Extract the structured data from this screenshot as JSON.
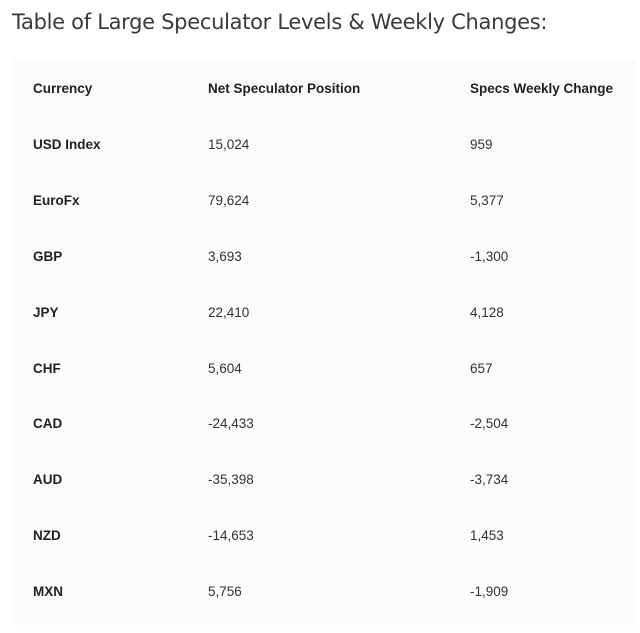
{
  "title": "Table of Large Speculator Levels & Weekly Changes:",
  "table": {
    "headers": [
      "Currency",
      "Net Speculator Position",
      "Specs Weekly Change"
    ],
    "rows": [
      [
        "USD Index",
        "15,024",
        "959"
      ],
      [
        "EuroFx",
        "79,624",
        "5,377"
      ],
      [
        "GBP",
        "3,693",
        "-1,300"
      ],
      [
        "JPY",
        "22,410",
        "4,128"
      ],
      [
        "CHF",
        "5,604",
        "657"
      ],
      [
        "CAD",
        "-24,433",
        "-2,504"
      ],
      [
        "AUD",
        "-35,398",
        "-3,734"
      ],
      [
        "NZD",
        "-14,653",
        "1,453"
      ],
      [
        "MXN",
        "5,756",
        "-1,909"
      ]
    ]
  }
}
